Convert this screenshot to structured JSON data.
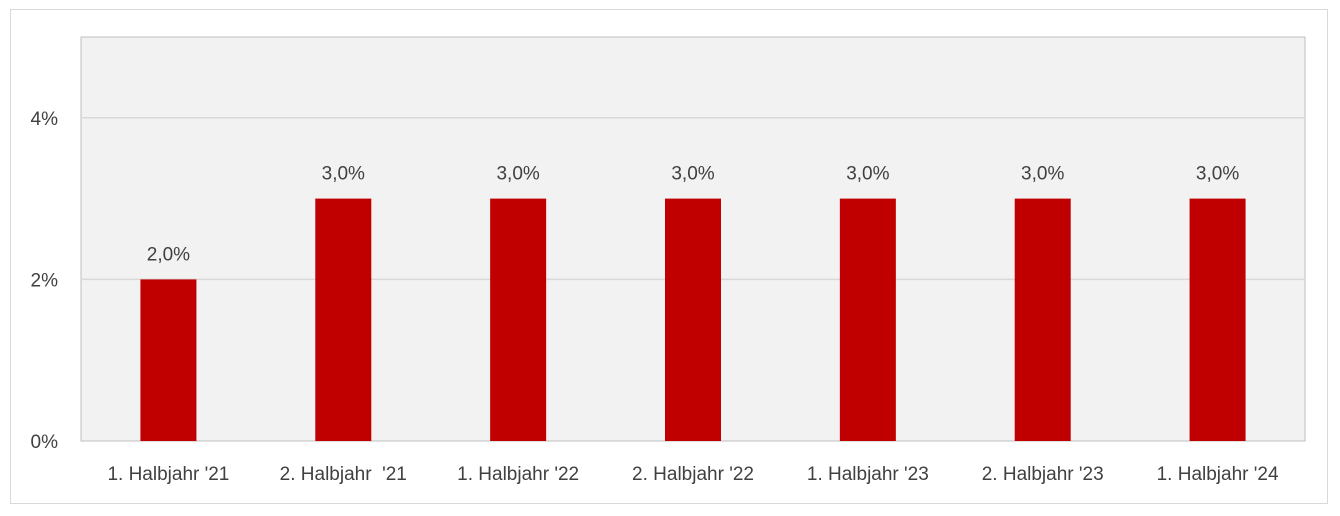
{
  "chart_data": {
    "type": "bar",
    "categories": [
      "1. Halbjahr '21",
      "2. Halbjahr  '21",
      "1. Halbjahr '22",
      "2. Halbjahr '22",
      "1. Halbjahr '23",
      "2. Halbjahr '23",
      "1. Halbjahr '24"
    ],
    "values": [
      2.0,
      3.0,
      3.0,
      3.0,
      3.0,
      3.0,
      3.0
    ],
    "data_labels": [
      "2,0%",
      "3,0%",
      "3,0%",
      "3,0%",
      "3,0%",
      "3,0%",
      "3,0%"
    ],
    "title": "",
    "xlabel": "",
    "ylabel": "",
    "ylim": [
      0,
      5
    ],
    "yticks": [
      0,
      2,
      4
    ],
    "ytick_labels": [
      "0%",
      "2%",
      "4%"
    ],
    "grid": true,
    "legend": "none",
    "colors": {
      "bar": "#c00000",
      "plot_background": "#f2f2f2",
      "gridline": "#d9d9d9",
      "text": "#404040"
    }
  }
}
